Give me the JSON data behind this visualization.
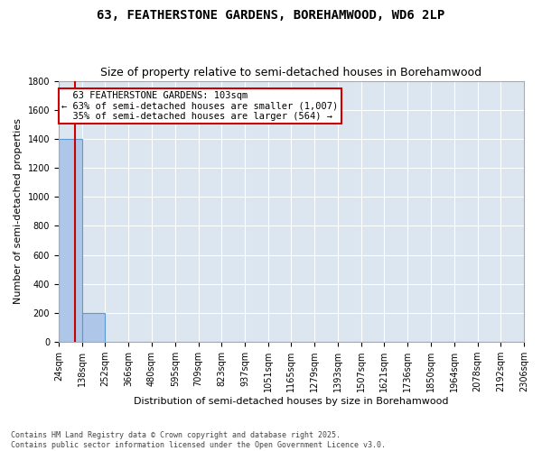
{
  "title": "63, FEATHERSTONE GARDENS, BOREHAMWOOD, WD6 2LP",
  "subtitle": "Size of property relative to semi-detached houses in Borehamwood",
  "xlabel": "Distribution of semi-detached houses by size in Borehamwood",
  "ylabel": "Number of semi-detached properties",
  "footer": "Contains HM Land Registry data © Crown copyright and database right 2025.\nContains public sector information licensed under the Open Government Licence v3.0.",
  "property_size": 103,
  "property_label": "63 FEATHERSTONE GARDENS: 103sqm",
  "pct_smaller": 63,
  "pct_smaller_n": 1007,
  "pct_larger": 35,
  "pct_larger_n": 564,
  "bin_edges": [
    24,
    138,
    252,
    366,
    480,
    595,
    709,
    823,
    937,
    1051,
    1165,
    1279,
    1393,
    1507,
    1621,
    1736,
    1850,
    1964,
    2078,
    2192,
    2306
  ],
  "bar_heights": [
    1400,
    200,
    0,
    0,
    0,
    0,
    0,
    0,
    0,
    0,
    0,
    0,
    0,
    0,
    0,
    0,
    0,
    0,
    0,
    0
  ],
  "bar_color": "#aec6e8",
  "bar_edge_color": "#5b9bd5",
  "vline_color": "#cc0000",
  "annotation_box_color": "#cc0000",
  "background_color": "#dce6f1",
  "grid_color": "#ffffff",
  "fig_background": "#ffffff",
  "ylim": [
    0,
    1800
  ],
  "yticks": [
    0,
    200,
    400,
    600,
    800,
    1000,
    1200,
    1400,
    1600,
    1800
  ],
  "title_fontsize": 10,
  "subtitle_fontsize": 9,
  "ylabel_fontsize": 8,
  "xlabel_fontsize": 8,
  "annotation_fontsize": 7.5,
  "tick_fontsize": 7
}
